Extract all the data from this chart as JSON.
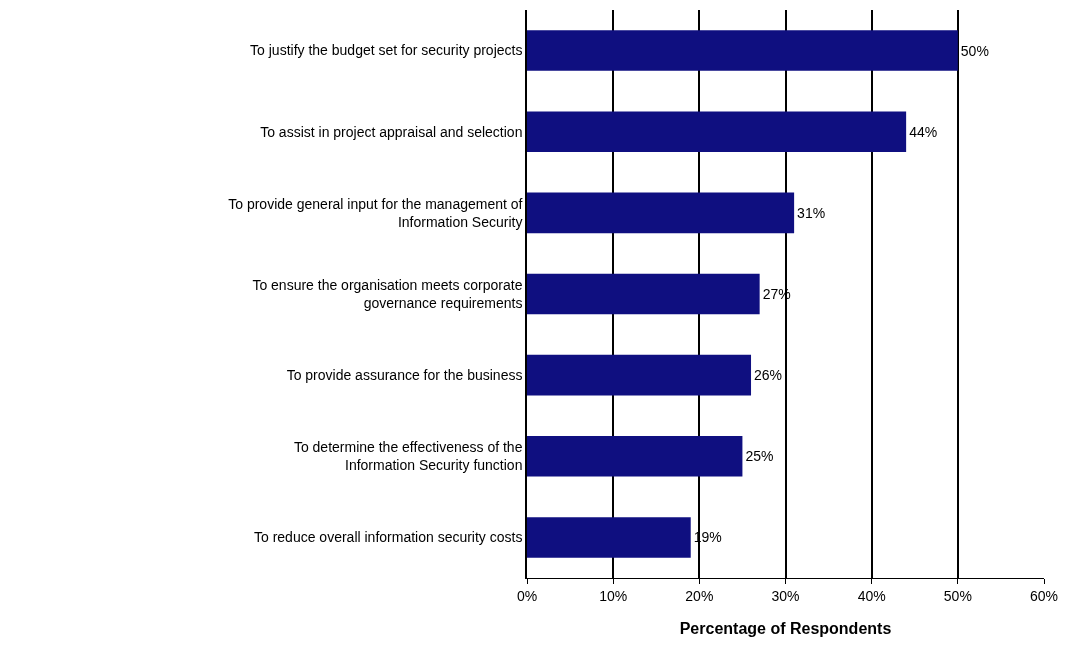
{
  "chart_data": {
    "type": "bar",
    "orientation": "horizontal",
    "categories": [
      "To justify the budget set for security projects",
      "To assist in project appraisal and selection",
      "To provide general input for the management of\nInformation Security",
      "To ensure the organisation meets corporate\ngovernance requirements",
      "To provide assurance for the business",
      "To determine the effectiveness of the\nInformation Security function",
      "To reduce overall information security costs"
    ],
    "values": [
      50,
      44,
      31,
      27,
      26,
      25,
      19
    ],
    "value_labels": [
      "50%",
      "44%",
      "31%",
      "27%",
      "26%",
      "25%",
      "19%"
    ],
    "color": "#0f0f80",
    "xlim": [
      0,
      60
    ],
    "xticks": [
      {
        "value": 0,
        "label": "0%"
      },
      {
        "value": 10,
        "label": "10%"
      },
      {
        "value": 20,
        "label": "20%"
      },
      {
        "value": 30,
        "label": "30%"
      },
      {
        "value": 40,
        "label": "40%"
      },
      {
        "value": 50,
        "label": "50%"
      },
      {
        "value": 60,
        "label": "60%"
      }
    ],
    "xlabel": "Percentage of Respondents",
    "grid": "x"
  }
}
